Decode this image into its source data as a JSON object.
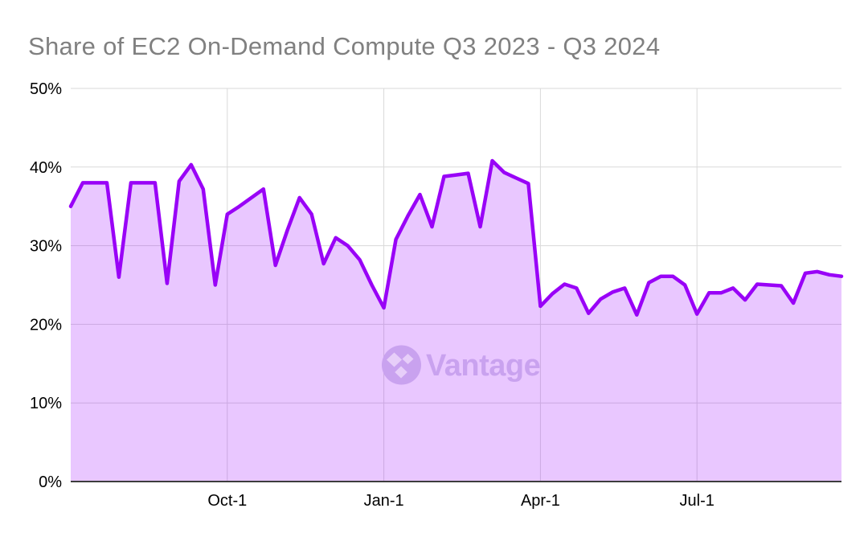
{
  "title": "Share of EC2 On-Demand Compute Q3 2023 - Q3 2024",
  "watermark": {
    "text": "Vantage"
  },
  "colors": {
    "background": "#ffffff",
    "line": "#9902f7",
    "area_fill": "rgba(153,0,255,0.22)",
    "gridline": "#d9d9d9",
    "baseline": "#3d3d3d",
    "title_text": "#808080",
    "axis_text": "#000000",
    "watermark": "#c9a2ef",
    "watermark_diamond": "#e7cef9"
  },
  "chart_data": {
    "type": "area",
    "title": "Share of EC2 On-Demand Compute Q3 2023 - Q3 2024",
    "xlabel": "",
    "ylabel": "",
    "ylim": [
      0,
      50
    ],
    "y_ticks": [
      0,
      10,
      20,
      30,
      40,
      50
    ],
    "y_tick_suffix": "%",
    "x_ticks": [
      {
        "label": "Oct-1",
        "index": 13
      },
      {
        "label": "Jan-1",
        "index": 26
      },
      {
        "label": "Apr-1",
        "index": 39
      },
      {
        "label": "Jul-1",
        "index": 52
      }
    ],
    "grid": true,
    "legend": false,
    "values": [
      35,
      38,
      38,
      38,
      26,
      38,
      38,
      38,
      25.2,
      38.2,
      40.3,
      37.2,
      25,
      34,
      35,
      36.1,
      37.2,
      27.5,
      32,
      36.1,
      34,
      27.7,
      31,
      30,
      28.2,
      25,
      22.1,
      30.8,
      33.8,
      36.5,
      32.4,
      38.8,
      39,
      39.2,
      32.4,
      40.8,
      39.3,
      38.6,
      37.9,
      22.3,
      23.9,
      25.1,
      24.6,
      21.4,
      23.2,
      24.1,
      24.6,
      21.2,
      25.3,
      26.1,
      26.1,
      25,
      21.3,
      24,
      24,
      24.6,
      23.1,
      25.1,
      25,
      24.9,
      22.7,
      26.5,
      26.7,
      26.3,
      26.1
    ]
  }
}
